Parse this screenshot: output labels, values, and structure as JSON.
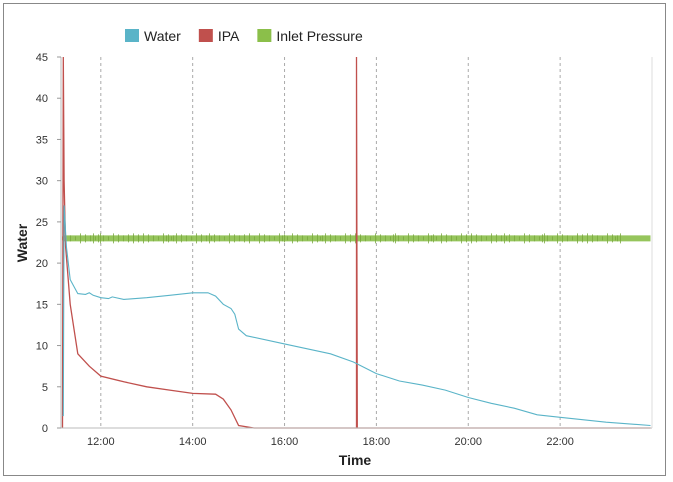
{
  "chart_data": {
    "type": "line",
    "xlabel": "Time",
    "ylabel": "Water",
    "xlim": [
      "11:08",
      "24:00"
    ],
    "ylim": [
      0,
      45
    ],
    "yticks": [
      0,
      5,
      10,
      15,
      20,
      25,
      30,
      35,
      40,
      45
    ],
    "xticks": [
      "12:00",
      "14:00",
      "16:00",
      "18:00",
      "20:00",
      "22:00"
    ],
    "grid": "vertical dashed",
    "legend": "top",
    "series": [
      {
        "name": "Water",
        "color": "#5ab4c8",
        "x": [
          "11:10",
          "11:11",
          "11:12",
          "11:15",
          "11:20",
          "11:30",
          "11:40",
          "11:45",
          "11:50",
          "12:00",
          "12:10",
          "12:15",
          "12:30",
          "13:00",
          "13:30",
          "14:00",
          "14:20",
          "14:30",
          "14:40",
          "14:50",
          "14:55",
          "15:00",
          "15:10",
          "16:00",
          "17:00",
          "17:30",
          "18:00",
          "18:30",
          "19:00",
          "19:30",
          "20:00",
          "20:30",
          "21:00",
          "21:30",
          "22:00",
          "23:00",
          "23:58"
        ],
        "y": [
          1.5,
          1.5,
          27,
          22,
          18,
          16.3,
          16.2,
          16.4,
          16.1,
          15.8,
          15.7,
          15.9,
          15.6,
          15.8,
          16.1,
          16.4,
          16.4,
          16,
          15,
          14.5,
          13.8,
          12,
          11.2,
          10.2,
          9,
          8,
          6.6,
          5.7,
          5.2,
          4.6,
          3.7,
          3,
          2.4,
          1.6,
          1.3,
          0.7,
          0.3
        ]
      },
      {
        "name": "IPA",
        "color": "#c0504d",
        "x": [
          "11:10",
          "11:11",
          "11:12",
          "11:14",
          "11:20",
          "11:30",
          "11:45",
          "12:00",
          "12:30",
          "13:00",
          "13:30",
          "14:00",
          "14:30",
          "14:40",
          "14:50",
          "15:00",
          "15:20",
          "17:34",
          "17:34",
          "17:35",
          "23:58"
        ],
        "y": [
          0,
          45,
          30,
          22,
          15,
          9,
          7.5,
          6.3,
          5.6,
          5,
          4.6,
          4.2,
          4.1,
          3.5,
          2.2,
          0.3,
          0,
          0,
          45,
          0,
          0
        ]
      },
      {
        "name": "Inlet Pressure",
        "color": "#8bbf4a",
        "x": [
          "11:10",
          "23:58"
        ],
        "y": [
          23,
          23
        ]
      }
    ]
  }
}
